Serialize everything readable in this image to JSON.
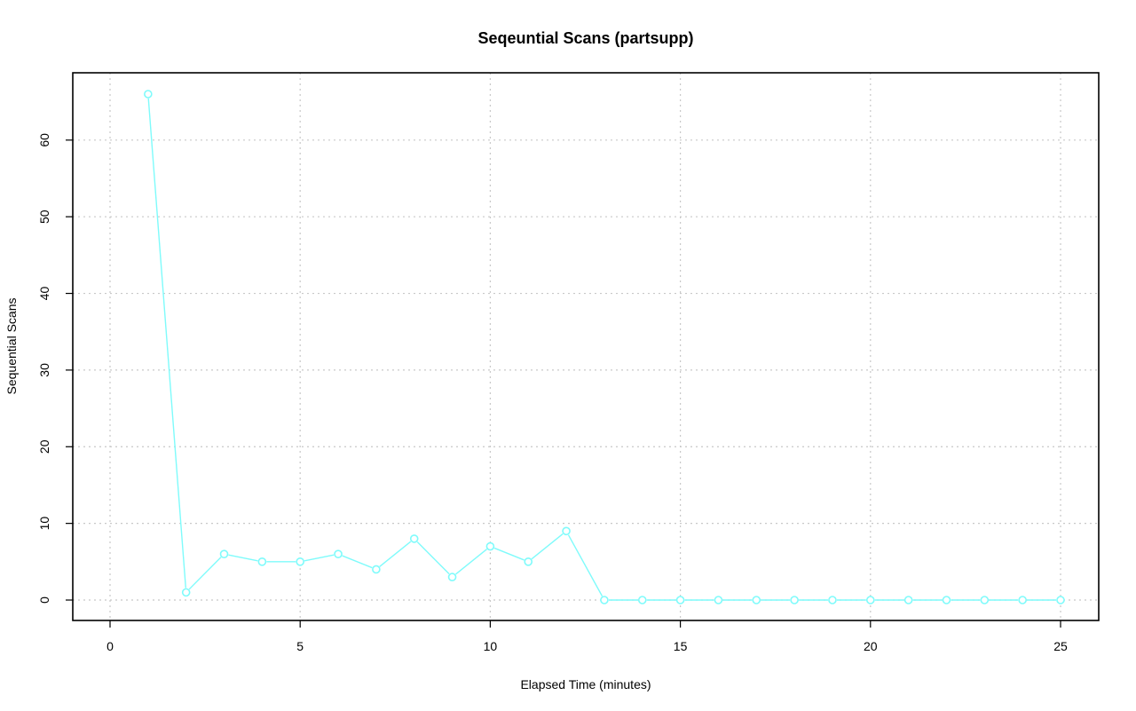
{
  "chart_data": {
    "type": "line",
    "title": "Seqeuntial Scans (partsupp)",
    "xlabel": "Elapsed Time (minutes)",
    "ylabel": "Sequential Scans",
    "xlim": [
      0,
      25
    ],
    "ylim": [
      0,
      66
    ],
    "x_ticks": [
      0,
      5,
      10,
      15,
      20,
      25
    ],
    "y_ticks": [
      0,
      10,
      20,
      30,
      40,
      50,
      60
    ],
    "grid": true,
    "series": [
      {
        "color": "#7ffbfb",
        "x": [
          1,
          2,
          3,
          4,
          5,
          6,
          7,
          8,
          9,
          10,
          11,
          12,
          13,
          14,
          15,
          16,
          17,
          18,
          19,
          20,
          21,
          22,
          23,
          24,
          25
        ],
        "values": [
          66,
          1,
          6,
          5,
          5,
          6,
          4,
          8,
          3,
          7,
          5,
          9,
          0,
          0,
          0,
          0,
          0,
          0,
          0,
          0,
          0,
          0,
          0,
          0,
          0
        ]
      }
    ]
  }
}
